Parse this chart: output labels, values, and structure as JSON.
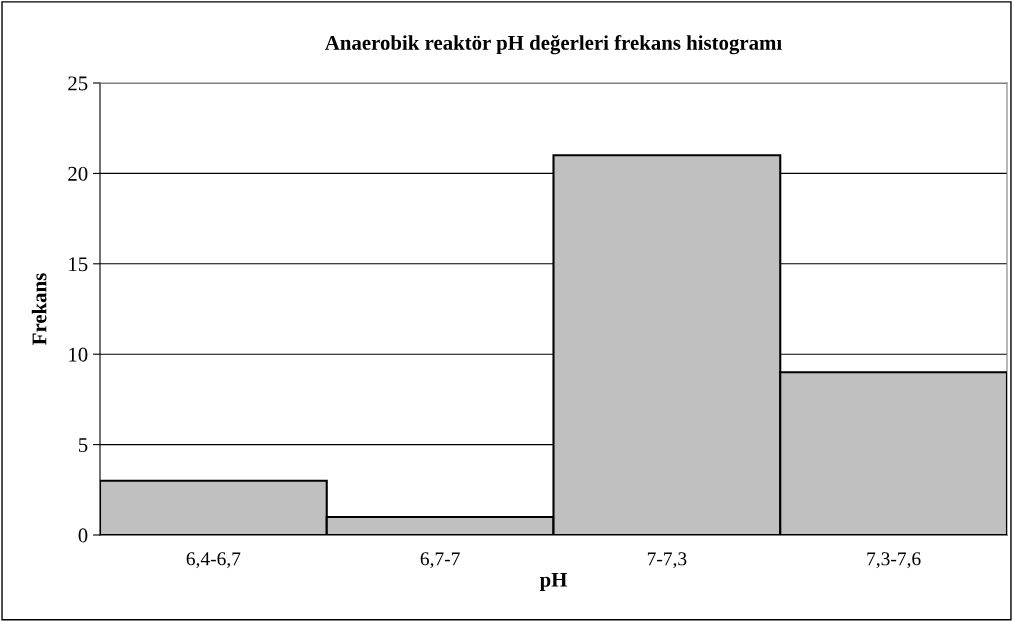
{
  "chart_data": {
    "type": "bar",
    "title": "Anaerobik reaktör pH değerleri frekans histogramı",
    "xlabel": "pH",
    "ylabel": "Frekans",
    "categories": [
      "6,4-6,7",
      "6,7-7",
      "7-7,3",
      "7,3-7,6"
    ],
    "values": [
      3,
      1,
      21,
      9
    ],
    "color": "#c0c0c0",
    "ylim": [
      0,
      25
    ],
    "yticks": [
      0,
      5,
      10,
      15,
      20,
      25
    ],
    "grid": "y",
    "legend": false
  }
}
